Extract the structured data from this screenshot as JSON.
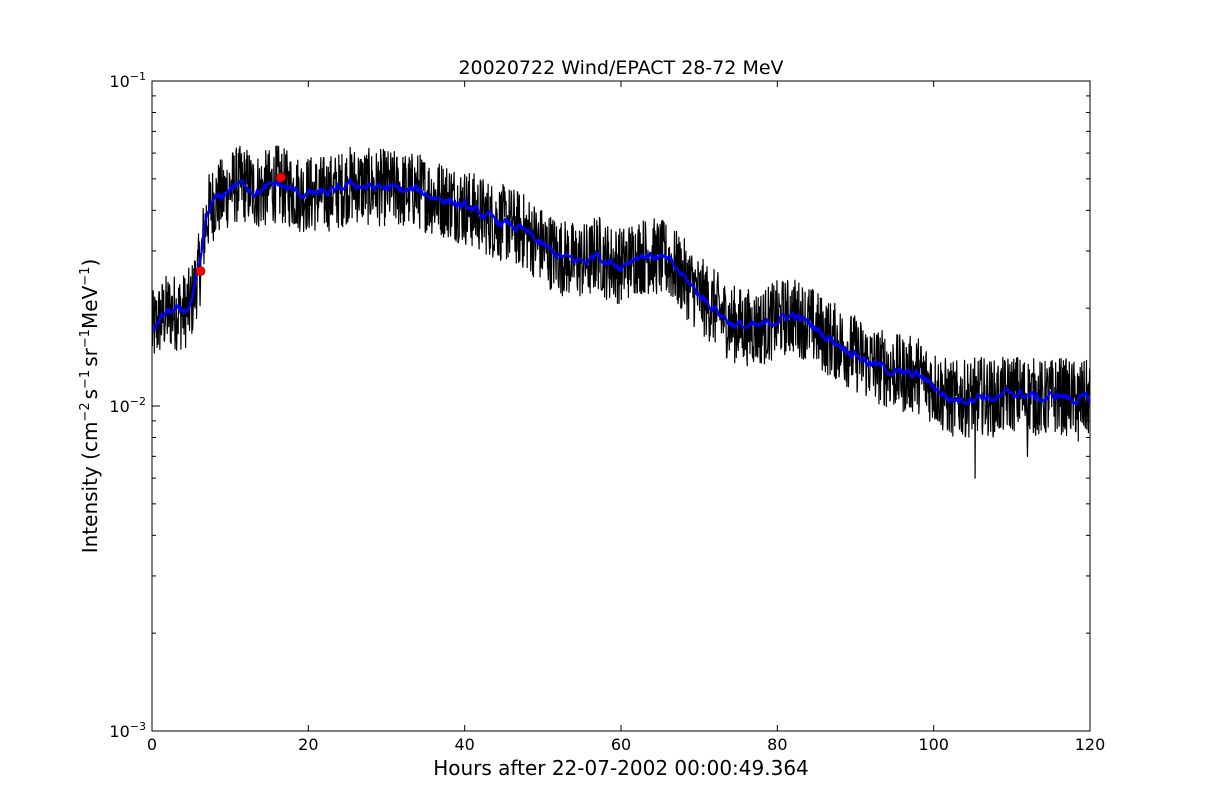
{
  "chart_data": {
    "type": "line",
    "title": "20020722 Wind/EPACT 28-72 MeV",
    "xlabel": "Hours after 22-07-2002 00:00:49.364",
    "ylabel": {
      "prefix": "Intensity (cm",
      "sup1": "−2",
      "mid1": "s",
      "sup2": "−1",
      "mid2": "sr",
      "sup3": "−1",
      "mid3": "MeV",
      "sup4": "−1",
      "suffix": ")"
    },
    "xlim": [
      0,
      120
    ],
    "ylim": [
      0.001,
      0.1
    ],
    "yscale": "log",
    "grid": false,
    "x_ticks": [
      0,
      20,
      40,
      60,
      80,
      100,
      120
    ],
    "x_tick_labels": [
      "0",
      "20",
      "40",
      "60",
      "80",
      "100",
      "120"
    ],
    "y_ticks": [
      0.001,
      0.01,
      0.1
    ],
    "y_tick_labels": [
      {
        "base": "10",
        "exp": "−3"
      },
      {
        "base": "10",
        "exp": "−2"
      },
      {
        "base": "10",
        "exp": "−1"
      }
    ],
    "series": [
      {
        "kind": "raw",
        "color": "#000000",
        "noise": 0.12,
        "x": [
          0,
          1,
          2,
          3,
          4,
          5,
          5.8,
          6.2,
          6.6,
          7.0,
          7.5,
          8,
          9,
          10,
          11,
          12,
          13,
          14,
          15,
          16,
          17,
          18,
          19,
          20,
          22,
          24,
          25,
          26,
          28,
          30,
          32,
          34,
          36,
          38,
          40,
          42,
          44,
          46,
          48,
          50,
          52,
          54,
          56,
          57,
          58,
          60,
          62,
          64,
          66,
          68,
          70,
          72,
          74,
          76,
          78,
          80,
          82,
          84,
          86,
          88,
          90,
          92,
          94,
          96,
          98,
          100,
          102,
          104,
          106,
          108,
          110,
          112,
          114,
          116,
          118,
          120
        ],
        "y": [
          0.017,
          0.0185,
          0.0195,
          0.0195,
          0.0195,
          0.0205,
          0.025,
          0.027,
          0.033,
          0.038,
          0.041,
          0.043,
          0.044,
          0.047,
          0.048,
          0.048,
          0.046,
          0.046,
          0.047,
          0.0485,
          0.047,
          0.046,
          0.045,
          0.045,
          0.045,
          0.046,
          0.048,
          0.048,
          0.047,
          0.047,
          0.046,
          0.046,
          0.044,
          0.043,
          0.041,
          0.039,
          0.037,
          0.036,
          0.034,
          0.031,
          0.029,
          0.028,
          0.028,
          0.03,
          0.028,
          0.027,
          0.029,
          0.029,
          0.028,
          0.025,
          0.022,
          0.02,
          0.018,
          0.0175,
          0.0175,
          0.0185,
          0.019,
          0.018,
          0.0165,
          0.0155,
          0.0145,
          0.0135,
          0.013,
          0.0125,
          0.0125,
          0.0115,
          0.0105,
          0.0105,
          0.0108,
          0.0105,
          0.011,
          0.0108,
          0.0105,
          0.0108,
          0.0105,
          0.0105
        ],
        "dips": [
          {
            "x": 105.3,
            "y": 0.006
          },
          {
            "x": 112,
            "y": 0.007
          },
          {
            "x": 118.5,
            "y": 0.0078
          }
        ]
      },
      {
        "kind": "smoothed",
        "color": "#0000ff",
        "noise": 0.035,
        "x": [
          0,
          1,
          2,
          3,
          4,
          5,
          5.8,
          6.2,
          6.6,
          7.0,
          7.5,
          8,
          9,
          10,
          11,
          12,
          13,
          14,
          15,
          16,
          17,
          18,
          19,
          20,
          22,
          24,
          25,
          26,
          28,
          30,
          32,
          34,
          36,
          38,
          40,
          42,
          44,
          46,
          48,
          50,
          52,
          54,
          56,
          57,
          58,
          60,
          62,
          64,
          66,
          68,
          70,
          72,
          74,
          76,
          78,
          80,
          82,
          84,
          86,
          88,
          90,
          92,
          94,
          96,
          98,
          100,
          102,
          104,
          106,
          108,
          110,
          112,
          114,
          116,
          118,
          120
        ],
        "y": [
          0.017,
          0.0185,
          0.0195,
          0.0195,
          0.0195,
          0.0205,
          0.025,
          0.027,
          0.033,
          0.038,
          0.041,
          0.043,
          0.044,
          0.047,
          0.048,
          0.048,
          0.046,
          0.046,
          0.047,
          0.0485,
          0.047,
          0.046,
          0.045,
          0.045,
          0.045,
          0.046,
          0.048,
          0.048,
          0.047,
          0.047,
          0.046,
          0.046,
          0.044,
          0.043,
          0.041,
          0.039,
          0.037,
          0.036,
          0.034,
          0.031,
          0.029,
          0.028,
          0.028,
          0.03,
          0.028,
          0.027,
          0.029,
          0.029,
          0.028,
          0.025,
          0.022,
          0.02,
          0.018,
          0.0175,
          0.0175,
          0.0185,
          0.019,
          0.018,
          0.0165,
          0.0155,
          0.0145,
          0.0135,
          0.013,
          0.0125,
          0.0125,
          0.0115,
          0.0105,
          0.0105,
          0.0108,
          0.0105,
          0.011,
          0.0108,
          0.0105,
          0.0108,
          0.0105,
          0.0105
        ]
      }
    ],
    "markers": [
      {
        "x": 6.2,
        "y": 0.026,
        "color": "#ff0000"
      },
      {
        "x": 16.5,
        "y": 0.0505,
        "color": "#ff0000"
      }
    ]
  }
}
